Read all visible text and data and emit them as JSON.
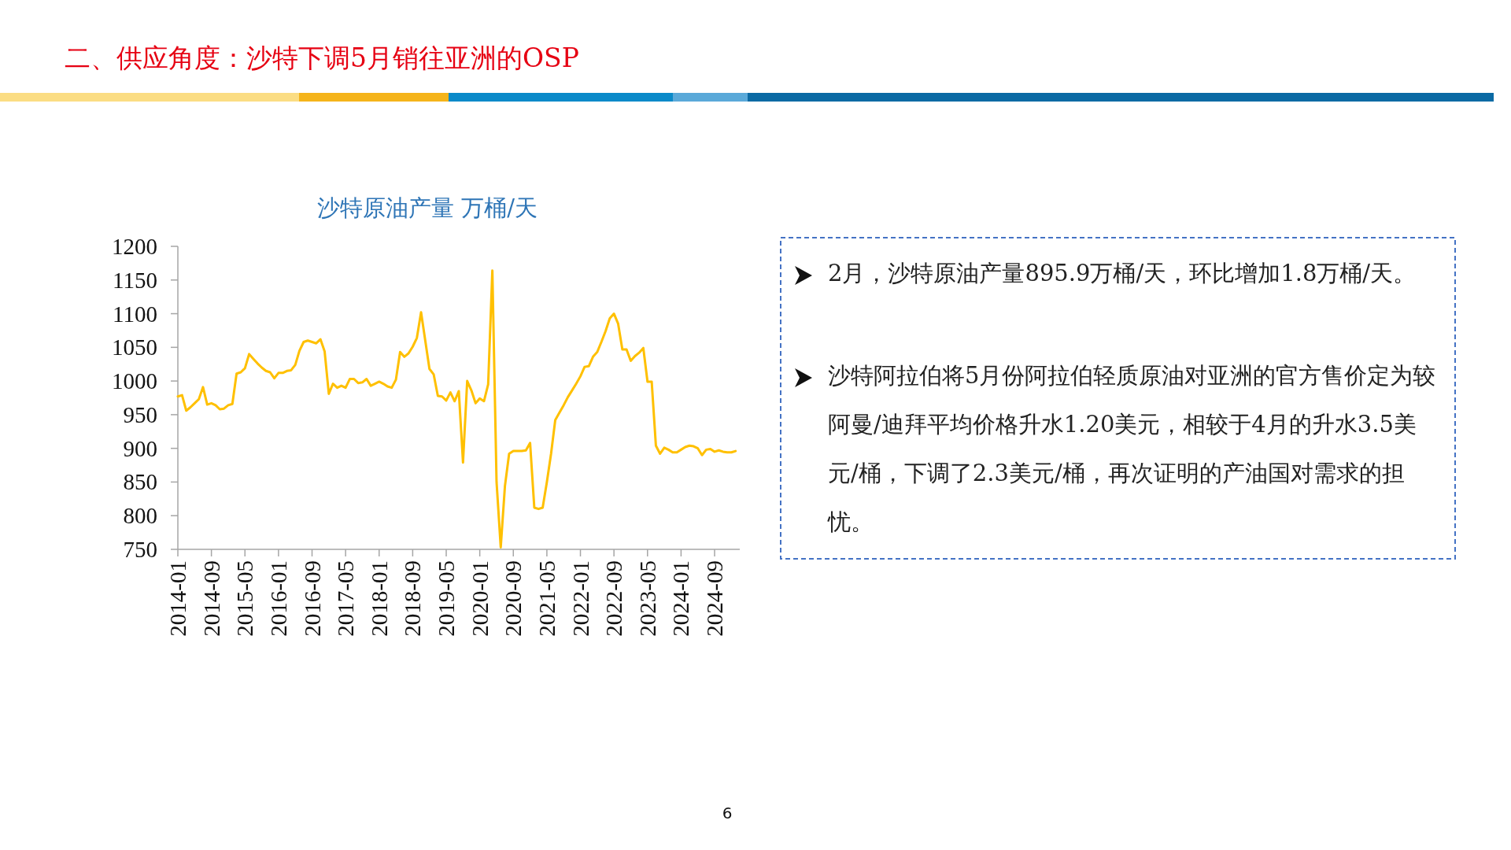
{
  "chart_data": {
    "type": "line",
    "title": "二、供应角度：沙特下调5月销往亚洲的OSP",
    "subtitle": "沙特原油产量 万桶/天",
    "annotations": [
      "2月，沙特原油产量895.9万桶/天，环比增加1.8万桶/天。",
      "沙特阿拉伯将5月份阿拉伯轻质原油对亚洲的官方售价定为较阿曼/迪拜平均价格升水1.20美元，相较于4月的升水3.5美元/桶，下调了2.3美元/桶，再次证明的产油国对需求的担忧。",
      "6"
    ],
    "x": [
      "2014-01",
      "2014-02",
      "2014-03",
      "2014-04",
      "2014-05",
      "2014-06",
      "2014-07",
      "2014-08",
      "2014-09",
      "2014-10",
      "2014-11",
      "2014-12",
      "2015-01",
      "2015-02",
      "2015-03",
      "2015-04",
      "2015-05",
      "2015-06",
      "2015-07",
      "2015-08",
      "2015-09",
      "2015-10",
      "2015-11",
      "2015-12",
      "2016-01",
      "2016-02",
      "2016-03",
      "2016-04",
      "2016-05",
      "2016-06",
      "2016-07",
      "2016-08",
      "2016-09",
      "2016-10",
      "2016-11",
      "2016-12",
      "2017-01",
      "2017-02",
      "2017-03",
      "2017-04",
      "2017-05",
      "2017-06",
      "2017-07",
      "2017-08",
      "2017-09",
      "2017-10",
      "2017-11",
      "2017-12",
      "2018-01",
      "2018-02",
      "2018-03",
      "2018-04",
      "2018-05",
      "2018-06",
      "2018-07",
      "2018-08",
      "2018-09",
      "2018-10",
      "2018-11",
      "2018-12",
      "2019-01",
      "2019-02",
      "2019-03",
      "2019-04",
      "2019-05",
      "2019-06",
      "2019-07",
      "2019-08",
      "2019-09",
      "2019-10",
      "2019-11",
      "2019-12",
      "2020-01",
      "2020-02",
      "2020-03",
      "2020-04",
      "2020-05",
      "2020-06",
      "2020-07",
      "2020-08",
      "2020-09",
      "2020-10",
      "2020-11",
      "2020-12",
      "2021-01",
      "2021-02",
      "2021-03",
      "2021-04",
      "2021-05",
      "2021-06",
      "2021-07",
      "2021-08",
      "2021-09",
      "2021-10",
      "2021-11",
      "2021-12",
      "2022-01",
      "2022-02",
      "2022-03",
      "2022-04",
      "2022-05",
      "2022-06",
      "2022-07",
      "2022-08",
      "2022-09",
      "2022-10",
      "2022-11",
      "2022-12",
      "2023-01",
      "2023-02",
      "2023-03",
      "2023-04",
      "2023-05",
      "2023-06",
      "2023-07",
      "2023-08",
      "2023-09",
      "2023-10",
      "2023-11",
      "2023-12",
      "2024-01",
      "2024-02",
      "2024-03",
      "2024-04",
      "2024-05",
      "2024-06",
      "2024-07",
      "2024-08",
      "2024-09",
      "2024-10",
      "2024-11",
      "2024-12",
      "2025-01",
      "2025-02"
    ],
    "series": [
      {
        "color": "#ffc000",
        "values": [
          977,
          979,
          956,
          961,
          967,
          973,
          991,
          965,
          967,
          964,
          958,
          959,
          964,
          966,
          1011,
          1013,
          1019,
          1040,
          1033,
          1026,
          1020,
          1015,
          1013,
          1004,
          1012,
          1012,
          1015,
          1016,
          1024,
          1045,
          1058,
          1060,
          1058,
          1056,
          1062,
          1044,
          981,
          996,
          990,
          993,
          990,
          1003,
          1003,
          997,
          998,
          1003,
          993,
          996,
          999,
          996,
          992,
          990,
          1002,
          1043,
          1036,
          1041,
          1051,
          1064,
          1102,
          1060,
          1018,
          1010,
          978,
          977,
          971,
          983,
          970,
          985,
          879,
          1000,
          986,
          967,
          974,
          970,
          995,
          1164,
          850,
          753,
          844,
          892,
          896,
          896,
          896,
          897,
          908,
          812,
          810,
          812,
          850,
          892,
          942,
          953,
          964,
          976,
          986,
          996,
          1007,
          1021,
          1022,
          1036,
          1043,
          1058,
          1074,
          1093,
          1100,
          1085,
          1047,
          1047,
          1030,
          1037,
          1042,
          1049,
          999,
          999,
          904,
          892,
          901,
          898,
          894,
          894,
          898,
          902,
          904,
          903,
          900,
          890,
          898,
          899,
          895,
          897,
          895,
          894,
          894,
          896
        ]
      }
    ],
    "xlim": [
      "2014-01",
      "2025-03"
    ],
    "xticks": [
      "2014-01",
      "2014-09",
      "2015-05",
      "2016-01",
      "2016-09",
      "2017-05",
      "2018-01",
      "2018-09",
      "2019-05",
      "2020-01",
      "2020-09",
      "2021-05",
      "2022-01",
      "2022-09",
      "2023-05",
      "2024-01",
      "2024-09"
    ],
    "ylim": [
      750,
      1200
    ],
    "yticks": [
      750,
      800,
      850,
      900,
      950,
      1000,
      1050,
      1100,
      1150,
      1200
    ],
    "grid": false,
    "marker": "none",
    "line_style": "solid"
  }
}
